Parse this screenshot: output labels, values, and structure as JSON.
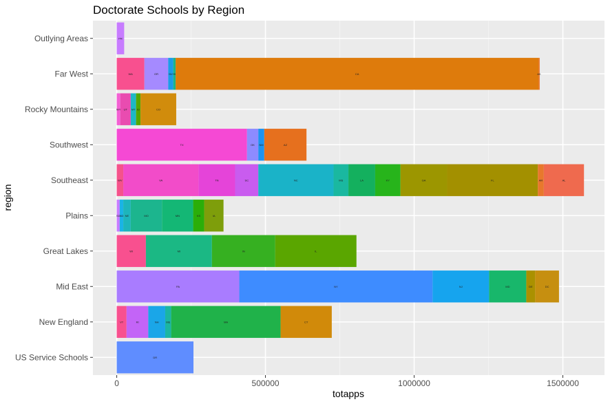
{
  "chart_data": {
    "type": "bar",
    "orientation": "horizontal",
    "stacked": true,
    "title": "Doctorate Schools by Region",
    "xlabel": "totapps",
    "ylabel": "region",
    "xlim": [
      -80000,
      1640000
    ],
    "xticks": [
      {
        "value": 0,
        "label": "0"
      },
      {
        "value": 500000,
        "label": "500000"
      },
      {
        "value": 1000000,
        "label": "1000000"
      },
      {
        "value": 1500000,
        "label": "1500000"
      }
    ],
    "grid": true,
    "legend": "none",
    "categories": [
      "Outlying Areas",
      "Far West",
      "Rocky Mountains",
      "Southwest",
      "Southeast",
      "Plains",
      "Great Lakes",
      "Mid East",
      "New England",
      "US Service Schools"
    ],
    "stacks": [
      {
        "region": "Outlying Areas",
        "segments": [
          {
            "label": "PR",
            "value": 25000,
            "color": "#C77CFF"
          }
        ]
      },
      {
        "region": "Far West",
        "segments": [
          {
            "label": "WA",
            "value": 93000,
            "color": "#F8508F"
          },
          {
            "label": "OR",
            "value": 80000,
            "color": "#A58AFF"
          },
          {
            "label": "NV",
            "value": 17000,
            "color": "#1C9CE8"
          },
          {
            "label": "HI",
            "value": 8000,
            "color": "#1BB38A"
          },
          {
            "label": "CA",
            "value": 1220000,
            "color": "#DE7B0C"
          },
          {
            "label": "AK",
            "value": 4000,
            "color": "#E8701C"
          }
        ]
      },
      {
        "region": "Rocky Mountains",
        "segments": [
          {
            "label": "WY",
            "value": 12000,
            "color": "#F35FD3"
          },
          {
            "label": "UT",
            "value": 35000,
            "color": "#E94CB0"
          },
          {
            "label": "MT",
            "value": 18000,
            "color": "#1DB8C6"
          },
          {
            "label": "ID",
            "value": 15000,
            "color": "#57A600"
          },
          {
            "label": "CO",
            "value": 120000,
            "color": "#D18C0C"
          }
        ]
      },
      {
        "region": "Southwest",
        "segments": [
          {
            "label": "TX",
            "value": 438000,
            "color": "#F549D4"
          },
          {
            "label": "OK",
            "value": 38000,
            "color": "#8D8BFF"
          },
          {
            "label": "NM",
            "value": 20000,
            "color": "#1C93F0"
          },
          {
            "label": "AZ",
            "value": 142000,
            "color": "#E6701E"
          }
        ]
      },
      {
        "region": "Southeast",
        "segments": [
          {
            "label": "WV",
            "value": 22000,
            "color": "#F5528B"
          },
          {
            "label": "VA",
            "value": 253000,
            "color": "#F24CC9"
          },
          {
            "label": "TN",
            "value": 123000,
            "color": "#E544D9"
          },
          {
            "label": "SC",
            "value": 78000,
            "color": "#C95CEF"
          },
          {
            "label": "NC",
            "value": 253000,
            "color": "#1AB3C8"
          },
          {
            "label": "MS",
            "value": 50000,
            "color": "#1AB8A0"
          },
          {
            "label": "LA",
            "value": 90000,
            "color": "#14B05E"
          },
          {
            "label": "KY",
            "value": 85000,
            "color": "#27B41B"
          },
          {
            "label": "GA",
            "value": 157000,
            "color": "#9C9600"
          },
          {
            "label": "FL",
            "value": 305000,
            "color": "#A39000"
          },
          {
            "label": "AR",
            "value": 20000,
            "color": "#E8782C"
          },
          {
            "label": "AL",
            "value": 135000,
            "color": "#EF6A4E"
          }
        ]
      },
      {
        "region": "Plains",
        "segments": [
          {
            "label": "SD",
            "value": 10000,
            "color": "#C77CFF"
          },
          {
            "label": "ND",
            "value": 12000,
            "color": "#1AB3E6"
          },
          {
            "label": "NE",
            "value": 25000,
            "color": "#1DB5BB"
          },
          {
            "label": "MO",
            "value": 105000,
            "color": "#1CB58E"
          },
          {
            "label": "MN",
            "value": 105000,
            "color": "#14B775"
          },
          {
            "label": "KS",
            "value": 37000,
            "color": "#2BAE09"
          },
          {
            "label": "IA",
            "value": 65000,
            "color": "#7E9E0B"
          }
        ]
      },
      {
        "region": "Great Lakes",
        "segments": [
          {
            "label": "WI",
            "value": 98000,
            "color": "#F8508F"
          },
          {
            "label": "MI",
            "value": 222000,
            "color": "#1BB884"
          },
          {
            "label": "IN",
            "value": 213000,
            "color": "#36B021"
          },
          {
            "label": "IL",
            "value": 273000,
            "color": "#5AA600"
          }
        ]
      },
      {
        "region": "Mid East",
        "segments": [
          {
            "label": "PA",
            "value": 412000,
            "color": "#A97CFF"
          },
          {
            "label": "NY",
            "value": 650000,
            "color": "#3E8CFF"
          },
          {
            "label": "NJ",
            "value": 190000,
            "color": "#16A4EE"
          },
          {
            "label": "MD",
            "value": 125000,
            "color": "#18B76B"
          },
          {
            "label": "DE",
            "value": 30000,
            "color": "#AA9100"
          },
          {
            "label": "DC",
            "value": 80000,
            "color": "#C68F10"
          }
        ]
      },
      {
        "region": "New England",
        "segments": [
          {
            "label": "VT",
            "value": 33000,
            "color": "#F8508F"
          },
          {
            "label": "RI",
            "value": 73000,
            "color": "#C364F7"
          },
          {
            "label": "NH",
            "value": 57000,
            "color": "#1AA6E8"
          },
          {
            "label": "ME",
            "value": 20000,
            "color": "#1BB6A2"
          },
          {
            "label": "MA",
            "value": 368000,
            "color": "#20B24A"
          },
          {
            "label": "CT",
            "value": 172000,
            "color": "#D18A0A"
          }
        ]
      },
      {
        "region": "US Service Schools",
        "segments": [
          {
            "label": "DR",
            "value": 258000,
            "color": "#5F8DFF"
          }
        ]
      }
    ]
  }
}
